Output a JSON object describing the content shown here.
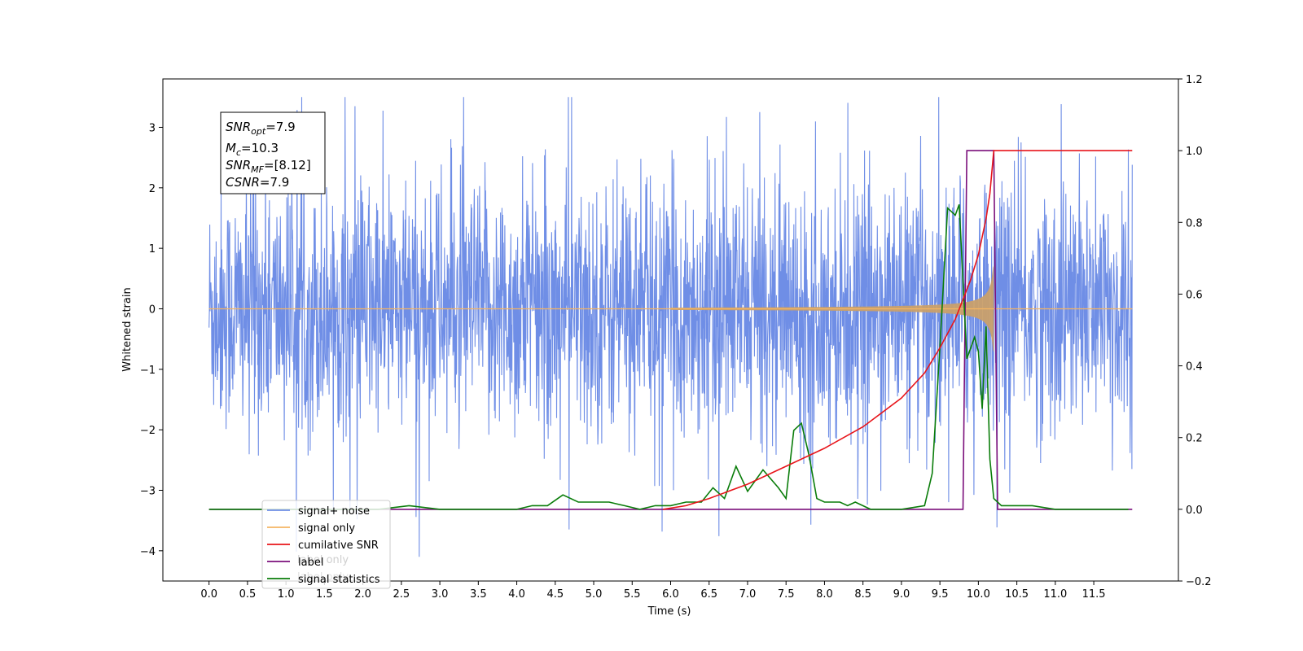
{
  "chart_data": {
    "type": "line",
    "xlabel": "Time (s)",
    "ylabel": "Whitened strain",
    "xlim": [
      -0.6,
      12.6
    ],
    "ylim": [
      -4.5,
      3.8
    ],
    "y2lim": [
      -0.2,
      1.2
    ],
    "grid": false,
    "legend_position": "lower-left",
    "x_ticks": [
      "0.0",
      "0.5",
      "1.0",
      "1.5",
      "2.0",
      "2.5",
      "3.0",
      "3.5",
      "4.0",
      "4.5",
      "5.0",
      "5.5",
      "6.0",
      "6.5",
      "7.0",
      "7.5",
      "8.0",
      "8.5",
      "9.0",
      "9.5",
      "10.0",
      "10.5",
      "11.0",
      "11.5"
    ],
    "y_ticks": [
      "3",
      "2",
      "1",
      "0",
      "−1",
      "−2",
      "−3",
      "−4"
    ],
    "y2_ticks": [
      "1.2",
      "1.0",
      "0.8",
      "0.6",
      "0.4",
      "0.2",
      "0.0",
      "−0.2"
    ],
    "colors": {
      "signal_noise": "#6f8ee6",
      "signal_only": "#f5b562",
      "chirp_fill": "#c9a06a",
      "cumulative_snr": "#e8141a",
      "label": "#7b0f7b",
      "signal_statistics": "#0a7d0a"
    },
    "annotation": {
      "snr_opt_sym": "SNR",
      "snr_opt_sub": "opt",
      "snr_opt_val": "=7.9",
      "mc_sym": "M",
      "mc_sub": "c",
      "mc_val": "=10.3",
      "snr_mf_sym": "SNR",
      "snr_mf_sub": "MF",
      "snr_mf_val": "=[8.12]",
      "csnr_sym": "CSNR",
      "csnr_val": "=7.9"
    },
    "series": [
      {
        "name": "signal+ noise",
        "axis": "left",
        "amplitude_envelope": 1.5,
        "x_range": [
          0.0,
          12.0
        ]
      },
      {
        "name": "signal only",
        "axis": "left",
        "chirp_merger_time": 10.2,
        "chirp_peak_amplitude": 0.72
      },
      {
        "name": "cumilative SNR",
        "axis": "right",
        "x": [
          5.9,
          6.2,
          6.5,
          7.0,
          7.5,
          8.0,
          8.5,
          9.0,
          9.3,
          9.5,
          9.7,
          9.9,
          10.0,
          10.1,
          10.15,
          10.2,
          12.0
        ],
        "y": [
          0.0,
          0.01,
          0.03,
          0.07,
          0.12,
          0.17,
          0.23,
          0.31,
          0.38,
          0.45,
          0.53,
          0.64,
          0.71,
          0.81,
          0.88,
          1.0,
          1.0
        ]
      },
      {
        "name": "label",
        "axis": "right",
        "x": [
          0.0,
          9.8,
          9.85,
          10.2,
          10.25,
          12.0
        ],
        "y": [
          0.0,
          0.0,
          1.0,
          1.0,
          0.0,
          0.0
        ]
      },
      {
        "name": "signal statistics",
        "axis": "right",
        "x": [
          0.0,
          2.2,
          2.6,
          3.0,
          3.5,
          4.0,
          4.2,
          4.4,
          4.6,
          4.8,
          5.0,
          5.2,
          5.4,
          5.6,
          5.8,
          6.0,
          6.2,
          6.4,
          6.55,
          6.7,
          6.85,
          7.0,
          7.2,
          7.4,
          7.5,
          7.6,
          7.7,
          7.8,
          7.9,
          8.0,
          8.2,
          8.3,
          8.4,
          8.6,
          9.0,
          9.3,
          9.4,
          9.5,
          9.6,
          9.7,
          9.75,
          9.85,
          9.95,
          10.0,
          10.05,
          10.1,
          10.15,
          10.2,
          10.3,
          10.5,
          10.7,
          11.0,
          11.5,
          11.95
        ],
        "y": [
          0.0,
          0.0,
          0.01,
          0.0,
          0.0,
          0.0,
          0.01,
          0.01,
          0.04,
          0.02,
          0.02,
          0.02,
          0.01,
          0.0,
          0.01,
          0.01,
          0.02,
          0.02,
          0.06,
          0.03,
          0.12,
          0.05,
          0.11,
          0.06,
          0.03,
          0.22,
          0.24,
          0.15,
          0.03,
          0.02,
          0.02,
          0.01,
          0.02,
          0.0,
          0.0,
          0.01,
          0.1,
          0.45,
          0.84,
          0.82,
          0.85,
          0.42,
          0.48,
          0.44,
          0.28,
          0.51,
          0.14,
          0.03,
          0.01,
          0.01,
          0.01,
          0.0,
          0.0,
          0.0
        ]
      }
    ]
  },
  "legend": [
    {
      "label": "signal+ noise",
      "color": "#6f8ee6"
    },
    {
      "label": "signal only",
      "color": "#f5b562"
    },
    {
      "label": "cumilative SNR",
      "color": "#e8141a"
    },
    {
      "label": "label",
      "color": "#7b0f7b"
    },
    {
      "label": "signal statistics",
      "color": "#0a7d0a"
    }
  ],
  "ghost_legend_labels": [
    "label only",
    "label only"
  ]
}
